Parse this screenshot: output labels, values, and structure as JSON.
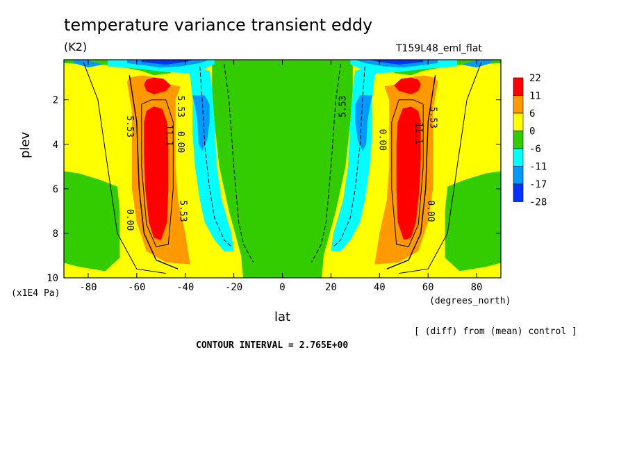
{
  "title": "temperature variance transient eddy",
  "units_label": "(K2)",
  "run_label": "T159L48_eml_flat",
  "footer": {
    "diff_note": "[ (diff) from (mean) control ]",
    "contour_interval": "CONTOUR INTERVAL = 2.765E+00"
  },
  "chart_data": {
    "type": "contour",
    "title": "temperature variance transient eddy",
    "units": "(K2)",
    "xlabel": "lat",
    "x_unit": "(degrees_north)",
    "ylabel": "plev",
    "y_unit": "(x1E4 Pa)",
    "xlim": [
      -90,
      90
    ],
    "ylim": [
      10,
      0.2
    ],
    "y_inverted": true,
    "x_ticks": [
      -80,
      -60,
      -40,
      -20,
      0,
      20,
      40,
      60,
      80
    ],
    "x_tick_labels": [
      "-80",
      "-60",
      "-40",
      "-20",
      "0",
      "20",
      "40",
      "60",
      "80"
    ],
    "y_ticks": [
      2,
      4,
      6,
      8,
      10
    ],
    "y_tick_labels": [
      "2",
      "4",
      "6",
      "8",
      "10"
    ],
    "contour_interval": 2.765,
    "contour_labels": [
      "5.53",
      "0.00",
      "11.1"
    ],
    "colorbar": {
      "labels": [
        "22",
        "11",
        "6",
        "0",
        "-6",
        "-11",
        "-17",
        "-28"
      ],
      "colors": [
        "#ff0000",
        "#ff9900",
        "#ffff00",
        "#33cc00",
        "#00ffff",
        "#0099ff",
        "#0033ff"
      ]
    },
    "features": [
      {
        "description": "warm maximum",
        "lat": -52,
        "plev": 5.0,
        "level": "> 22"
      },
      {
        "description": "warm maximum",
        "lat": 52,
        "plev": 5.0,
        "level": "> 22"
      },
      {
        "description": "warm maximum",
        "lat": -52,
        "plev": 1.3,
        "level": "> 22"
      },
      {
        "description": "warm maximum",
        "lat": 52,
        "plev": 1.3,
        "level": "> 22"
      },
      {
        "description": "cold minimum",
        "lat": -33,
        "plev": 3.0,
        "level": "-17 to -11"
      },
      {
        "description": "cold minimum",
        "lat": 33,
        "plev": 3.0,
        "level": "-17 to -11"
      },
      {
        "description": "near zero tropics",
        "lat": 0,
        "plev": 5.0,
        "level": "-6 to 0"
      }
    ]
  }
}
